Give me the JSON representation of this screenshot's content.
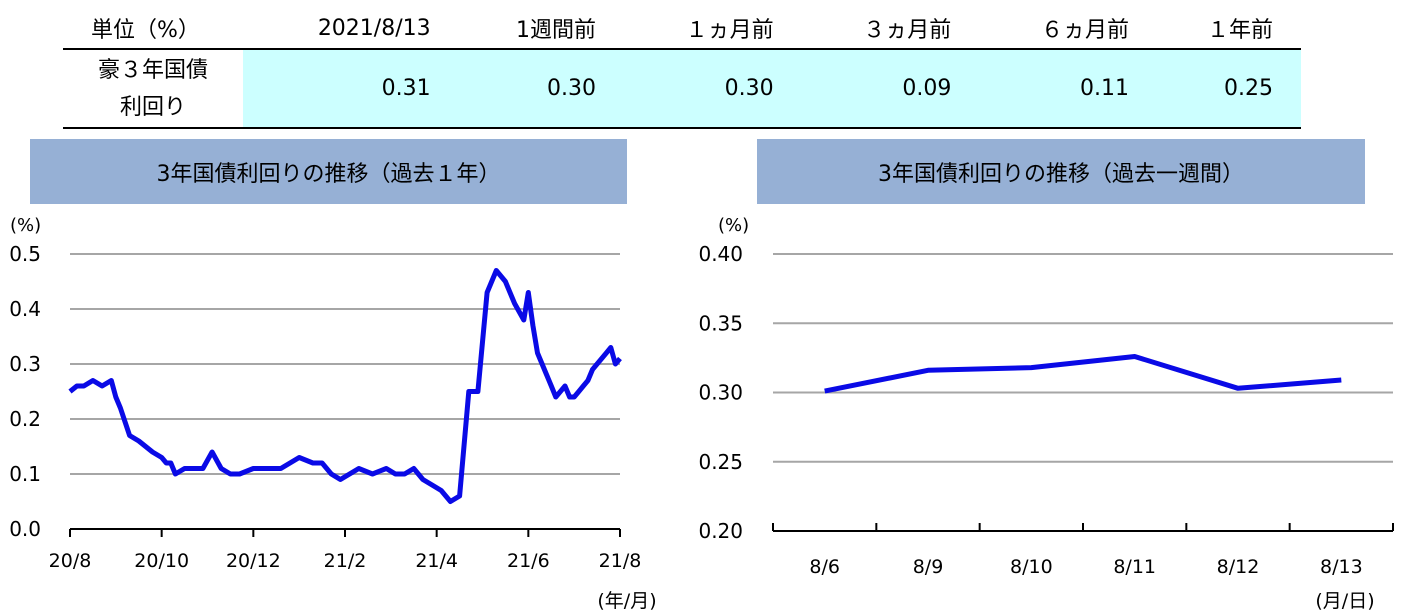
{
  "table": {
    "headers": [
      "単位（%）",
      "2021/8/13",
      "1週間前",
      "１ヵ月前",
      "３ヵ月前",
      "６ヵ月前",
      "１年前"
    ],
    "row_label_line1": "豪３年国債",
    "row_label_line2": "利回り",
    "values": [
      "0.31",
      "0.30",
      "0.30",
      "0.09",
      "0.11",
      "0.25"
    ]
  },
  "panels": {
    "left_title": "3年国債利回りの推移（過去１年）",
    "right_title": "3年国債利回りの推移（過去一週間）"
  },
  "colors": {
    "line": "#0a0ae6",
    "grid": "#a6a6a6",
    "title_bg": "#96b0d5",
    "table_bg": "#ccffff"
  },
  "chart_data": [
    {
      "type": "line",
      "title": "3年国債利回りの推移（過去１年）",
      "ylabel": "(%)",
      "xlabel": "(年/月)",
      "ylim": [
        0.0,
        0.5
      ],
      "yticks": [
        "0.0",
        "0.1",
        "0.2",
        "0.3",
        "0.4",
        "0.5"
      ],
      "xticks": [
        "20/8",
        "20/10",
        "20/12",
        "21/2",
        "21/4",
        "21/6",
        "21/8"
      ],
      "grid": true,
      "series": [
        {
          "x": [
            0,
            0.15,
            0.3,
            0.5,
            0.7,
            0.9,
            1.0,
            1.1,
            1.3,
            1.5,
            1.8,
            2.0,
            2.1,
            2.2,
            2.3,
            2.5,
            2.7,
            2.9,
            3.1,
            3.3,
            3.5,
            3.7,
            4.0,
            4.2,
            4.4,
            4.6,
            4.8,
            5.0,
            5.3,
            5.5,
            5.7,
            5.9,
            6.1,
            6.3,
            6.6,
            6.9,
            7.1,
            7.3,
            7.5,
            7.7,
            7.9,
            8.1,
            8.3,
            8.5,
            8.7,
            8.9,
            9.1,
            9.3,
            9.5,
            9.7,
            9.9,
            10.0,
            10.1,
            10.2,
            10.3,
            10.4,
            10.5,
            10.6,
            10.7,
            10.8,
            10.9,
            11.0,
            11.1,
            11.2,
            11.3,
            11.4,
            11.5,
            11.6,
            11.7,
            11.8,
            11.9,
            12.0
          ],
          "y": [
            0.25,
            0.26,
            0.26,
            0.27,
            0.26,
            0.27,
            0.24,
            0.22,
            0.17,
            0.16,
            0.14,
            0.13,
            0.12,
            0.12,
            0.1,
            0.11,
            0.11,
            0.11,
            0.14,
            0.11,
            0.1,
            0.1,
            0.11,
            0.11,
            0.11,
            0.11,
            0.12,
            0.13,
            0.12,
            0.12,
            0.1,
            0.09,
            0.1,
            0.11,
            0.1,
            0.11,
            0.1,
            0.1,
            0.11,
            0.09,
            0.08,
            0.07,
            0.05,
            0.06,
            0.25,
            0.25,
            0.43,
            0.47,
            0.45,
            0.41,
            0.38,
            0.43,
            0.37,
            0.32,
            0.3,
            0.28,
            0.26,
            0.24,
            0.25,
            0.26,
            0.24,
            0.24,
            0.25,
            0.26,
            0.27,
            0.29,
            0.3,
            0.31,
            0.32,
            0.33,
            0.3,
            0.31
          ]
        }
      ]
    },
    {
      "type": "line",
      "title": "3年国債利回りの推移（過去一週間）",
      "ylabel": "(%)",
      "xlabel": "(月/日)",
      "ylim": [
        0.2,
        0.4
      ],
      "yticks": [
        "0.20",
        "0.25",
        "0.30",
        "0.35",
        "0.40"
      ],
      "categories": [
        "8/6",
        "8/9",
        "8/10",
        "8/11",
        "8/12",
        "8/13"
      ],
      "grid": true,
      "series": [
        {
          "values": [
            0.301,
            0.316,
            0.318,
            0.326,
            0.303,
            0.309
          ]
        }
      ]
    }
  ]
}
